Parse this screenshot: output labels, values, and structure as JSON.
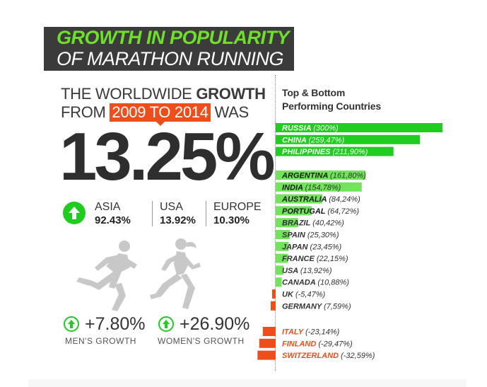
{
  "header": {
    "title_line1": "GROWTH IN POPULARITY",
    "title_line2": "OF MARATHON RUNNING"
  },
  "headline": {
    "line1_prefix": "THE WORLDWIDE ",
    "line1_bold": "GROWTH",
    "line2_prefix": "FROM ",
    "line2_tag": "2009 TO 2014",
    "line2_suffix": " WAS",
    "big_value": "13.25%"
  },
  "regions": [
    {
      "name": "ASIA",
      "value": "92.43%"
    },
    {
      "name": "USA",
      "value": "13.92%"
    },
    {
      "name": "EUROPE",
      "value": "10.30%"
    }
  ],
  "genders": [
    {
      "value": "+7.80%",
      "label": "MEN'S GROWTH"
    },
    {
      "value": "+26.90%",
      "label": "WOMEN'S GROWTH"
    }
  ],
  "colors": {
    "dark_green": "#1fcc1f",
    "light_green": "#72e45c",
    "orange": "#ee4d1c",
    "title_bg": "#3b3b3b",
    "title_green": "#6ee02b",
    "silhouette": "#c8c8c8"
  },
  "icons": {
    "arrow": "arrow-up-icon",
    "man": "male-runner-icon",
    "woman": "female-runner-icon"
  },
  "chart_data": {
    "type": "bar",
    "orientation": "horizontal",
    "title": "Top & Bottom Performing Countries",
    "unit": "%",
    "groups": [
      {
        "group": "top",
        "items": [
          {
            "country": "RUSSIA",
            "label": "(300%)",
            "value": 300
          },
          {
            "country": "CHINA",
            "label": "(259,47%)",
            "value": 259.47
          },
          {
            "country": "PHILIPPINES",
            "label": "(211,90%)",
            "value": 211.9
          }
        ]
      },
      {
        "group": "middle",
        "items": [
          {
            "country": "ARGENTINA",
            "label": "(161,80%)",
            "value": 161.8
          },
          {
            "country": "INDIA",
            "label": "(154,78%)",
            "value": 154.78
          },
          {
            "country": "AUSTRALIA",
            "label": "(84,24%)",
            "value": 84.24
          },
          {
            "country": "PORTUGAL",
            "label": "(64,72%)",
            "value": 64.72
          },
          {
            "country": "BRAZIL",
            "label": "(40,42%)",
            "value": 40.42
          },
          {
            "country": "SPAIN",
            "label": "(25,30%)",
            "value": 25.3
          },
          {
            "country": "JAPAN",
            "label": "(23,45%)",
            "value": 23.45
          },
          {
            "country": "FRANCE",
            "label": "(22,15%)",
            "value": 22.15
          },
          {
            "country": "USA",
            "label": "(13,92%)",
            "value": 13.92
          },
          {
            "country": "CANADA",
            "label": "(10,88%)",
            "value": 10.88
          },
          {
            "country": "UK",
            "label": "(-5,47%)",
            "value": -5.47
          },
          {
            "country": "GERMANY",
            "label": "(7,59%)",
            "value": 7.59
          }
        ]
      },
      {
        "group": "bottom",
        "items": [
          {
            "country": "ITALY",
            "label": "(-23,14%)",
            "value": -23.14
          },
          {
            "country": "FINLAND",
            "label": "(-29,47%)",
            "value": -29.47
          },
          {
            "country": "SWITZERLAND",
            "label": "(-32,59%)",
            "value": -32.59
          }
        ]
      }
    ]
  }
}
